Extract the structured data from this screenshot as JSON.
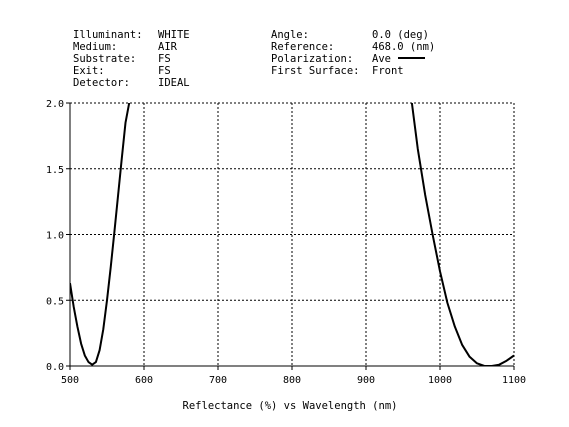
{
  "info": {
    "left": [
      {
        "label": "Illuminant:",
        "value": "WHITE"
      },
      {
        "label": "Medium:",
        "value": "AIR"
      },
      {
        "label": "Substrate:",
        "value": "FS"
      },
      {
        "label": "Exit:",
        "value": "FS"
      },
      {
        "label": "Detector:",
        "value": "IDEAL"
      }
    ],
    "right": [
      {
        "label": "Angle:",
        "value": "0.0 (deg)"
      },
      {
        "label": "Reference:",
        "value": "468.0 (nm)"
      },
      {
        "label": "Polarization:",
        "value": "Ave"
      },
      {
        "label": "First Surface:",
        "value": "Front"
      }
    ]
  },
  "chart_data": {
    "type": "line",
    "title": "",
    "xlabel": "Reflectance (%)   vs   Wavelength (nm)",
    "ylabel": "",
    "xlim": [
      500,
      1100
    ],
    "ylim": [
      0.0,
      2.0
    ],
    "x_ticks": [
      "500",
      "600",
      "700",
      "800",
      "900",
      "1000",
      "1100"
    ],
    "y_ticks": [
      "0.0",
      "0.5",
      "1.0",
      "1.5",
      "2.0"
    ],
    "grid": true,
    "series": [
      {
        "name": "Ave",
        "color": "#000000",
        "segments": [
          [
            [
              500,
              0.63
            ],
            [
              505,
              0.45
            ],
            [
              510,
              0.3
            ],
            [
              515,
              0.17
            ],
            [
              520,
              0.08
            ],
            [
              525,
              0.03
            ],
            [
              530,
              0.01
            ],
            [
              535,
              0.03
            ],
            [
              540,
              0.12
            ],
            [
              545,
              0.28
            ],
            [
              550,
              0.5
            ],
            [
              555,
              0.75
            ],
            [
              560,
              1.02
            ],
            [
              565,
              1.3
            ],
            [
              570,
              1.58
            ],
            [
              575,
              1.85
            ],
            [
              580,
              2.0
            ]
          ],
          [
            [
              962,
              2.0
            ],
            [
              970,
              1.65
            ],
            [
              980,
              1.3
            ],
            [
              990,
              1.0
            ],
            [
              1000,
              0.72
            ],
            [
              1010,
              0.48
            ],
            [
              1020,
              0.3
            ],
            [
              1030,
              0.16
            ],
            [
              1040,
              0.07
            ],
            [
              1050,
              0.02
            ],
            [
              1060,
              0.0
            ],
            [
              1070,
              0.0
            ],
            [
              1080,
              0.01
            ],
            [
              1090,
              0.04
            ],
            [
              1100,
              0.08
            ]
          ]
        ]
      }
    ]
  }
}
